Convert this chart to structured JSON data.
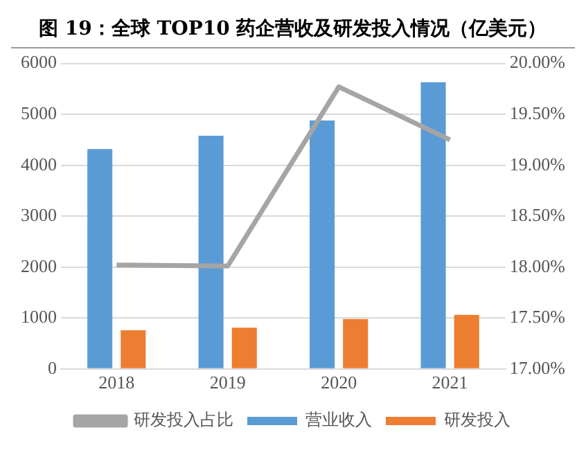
{
  "chart_data": {
    "type": "bar",
    "title": "图 19：全球 TOP10 药企营收及研发投入情况（亿美元）",
    "categories": [
      "2018",
      "2019",
      "2020",
      "2021"
    ],
    "series": [
      {
        "name": "营业收入",
        "color": "#5b9bd5",
        "values": [
          4320,
          4580,
          4880,
          5630
        ]
      },
      {
        "name": "研发投入",
        "color": "#ed7d31",
        "values": [
          760,
          810,
          980,
          1060
        ]
      },
      {
        "name": "研发投入占比",
        "type": "line",
        "axis": "y2",
        "color": "#a5a5a5",
        "values": [
          18.02,
          18.01,
          19.77,
          19.25
        ]
      }
    ],
    "ylim": [
      0,
      6000
    ],
    "yticks": [
      0,
      1000,
      2000,
      3000,
      4000,
      5000,
      6000
    ],
    "y2lim": [
      17,
      20
    ],
    "y2ticks": [
      {
        "value": 17,
        "label": "17.00%"
      },
      {
        "value": 17.5,
        "label": "17.50%"
      },
      {
        "value": 18,
        "label": "18.00%"
      },
      {
        "value": 18.5,
        "label": "18.50%"
      },
      {
        "value": 19,
        "label": "19.00%"
      },
      {
        "value": 19.5,
        "label": "19.50%"
      },
      {
        "value": 20,
        "label": "20.00%"
      }
    ],
    "grid": "y",
    "legend": "bottom",
    "marker": "none"
  }
}
